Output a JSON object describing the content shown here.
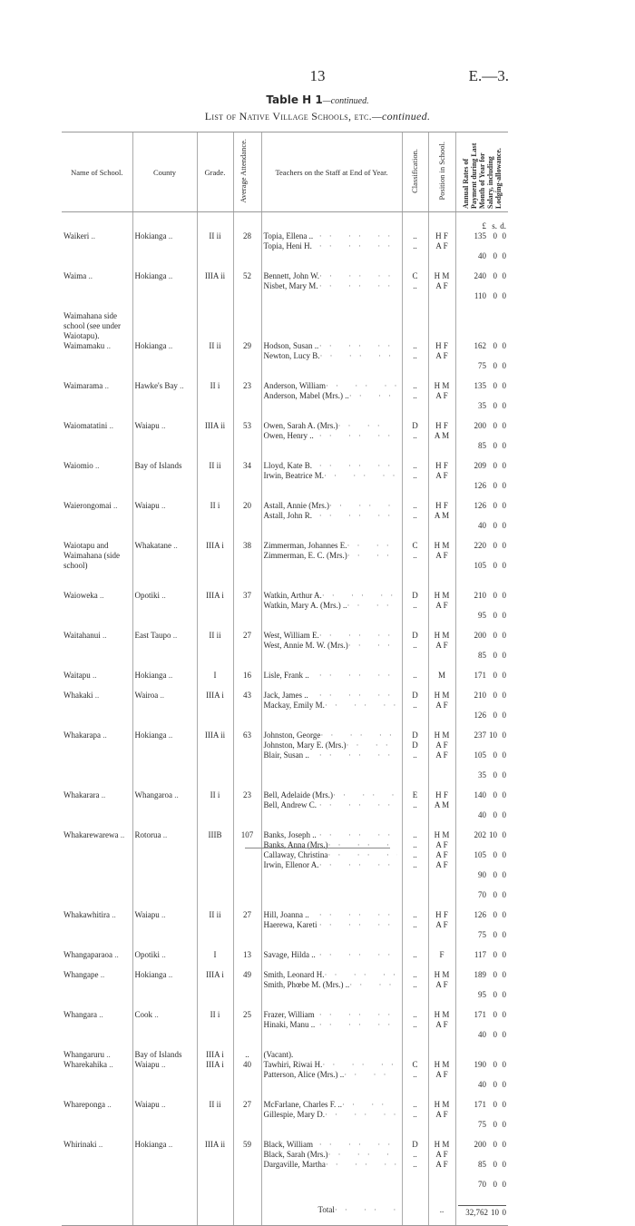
{
  "page": {
    "number": "13",
    "reference": "E.—3."
  },
  "title": {
    "main": "Table H 1",
    "cont": "—continued.",
    "subtitle": "List of Native Village Schools, etc.",
    "subtitle_cont": "—continued."
  },
  "columns": {
    "name": "Name of School.",
    "county": "County",
    "grade": "Grade.",
    "attendance": "Average Attendance.",
    "teachers": "Teachers on the Staff at End of Year.",
    "classification": "Classification.",
    "position": "Position in School.",
    "rates": "Annual Rates of Payment during Last Month of Year for Salary, including Lodging-allowance."
  },
  "currency": {
    "pounds": "£",
    "shillings": "s.",
    "pence": "d."
  },
  "schools": [
    {
      "name": "Waikeri",
      "county": "Hokianga",
      "grade": "II ii",
      "attendance": "28",
      "teachers": [
        [
          "Topia, Ellena ..",
          "..",
          "H F",
          "135",
          "0",
          "0"
        ],
        [
          "Topia, Heni H.",
          "..",
          "A F",
          "40",
          "0",
          "0"
        ]
      ]
    },
    {
      "name": "Waima",
      "county": "Hokianga",
      "grade": "IIIA ii",
      "attendance": "52",
      "teachers": [
        [
          "Bennett, John W.",
          "C",
          "H M",
          "240",
          "0",
          "0"
        ],
        [
          "Nisbet, Mary M.",
          "..",
          "A F",
          "110",
          "0",
          "0"
        ]
      ]
    },
    {
      "name": "Waimahana side school (see under Waiotapu).",
      "county": "",
      "grade": "",
      "attendance": "",
      "teachers": [
        [
          "",
          "",
          "",
          "",
          "",
          ""
        ],
        [
          "",
          "",
          "",
          "",
          "",
          ""
        ],
        [
          "",
          "",
          "",
          "",
          "",
          ""
        ]
      ]
    },
    {
      "name": "Waimamaku",
      "county": "Hokianga",
      "grade": "II ii",
      "attendance": "29",
      "teachers": [
        [
          "Hodson, Susan ..",
          "..",
          "H F",
          "162",
          "0",
          "0"
        ],
        [
          "Newton, Lucy B.",
          "..",
          "A F",
          "75",
          "0",
          "0"
        ]
      ]
    },
    {
      "name": "Waimarama",
      "county": "Hawke's Bay",
      "grade": "II i",
      "attendance": "23",
      "teachers": [
        [
          "Anderson, William",
          "..",
          "H M",
          "135",
          "0",
          "0"
        ],
        [
          "Anderson, Mabel (Mrs.) ..",
          "..",
          "A F",
          "35",
          "0",
          "0"
        ]
      ]
    },
    {
      "name": "Waiomatatini",
      "county": "Waiapu",
      "grade": "IIIA ii",
      "attendance": "53",
      "teachers": [
        [
          "Owen, Sarah A. (Mrs.)",
          "D",
          "H F",
          "200",
          "0",
          "0"
        ],
        [
          "Owen, Henry ..",
          "..",
          "A M",
          "85",
          "0",
          "0"
        ]
      ]
    },
    {
      "name": "Waiomio",
      "county": "Bay of Islands",
      "grade": "II ii",
      "attendance": "34",
      "teachers": [
        [
          "Lloyd, Kate B.",
          "..",
          "H F",
          "209",
          "0",
          "0"
        ],
        [
          "Irwin, Beatrice M.",
          "..",
          "A F",
          "126",
          "0",
          "0"
        ]
      ]
    },
    {
      "name": "Waierongomai",
      "county": "Waiapu",
      "grade": "II i",
      "attendance": "20",
      "teachers": [
        [
          "Astall, Annie (Mrs.)",
          "..",
          "H F",
          "126",
          "0",
          "0"
        ],
        [
          "Astall, John R.",
          "..",
          "A M",
          "40",
          "0",
          "0"
        ]
      ]
    },
    {
      "name": "Waiotapu and Waimahana (side school)",
      "county": "Whakatane",
      "grade": "IIIA i",
      "attendance": "38",
      "teachers": [
        [
          "Zimmerman, Johannes E.",
          "C",
          "H M",
          "220",
          "0",
          "0"
        ],
        [
          "Zimmerman, E. C. (Mrs.)",
          "..",
          "A F",
          "105",
          "0",
          "0"
        ],
        [
          "",
          "",
          "",
          "",
          "",
          ""
        ]
      ]
    },
    {
      "name": "Waioweka",
      "county": "Opotiki",
      "grade": "IIIA i",
      "attendance": "37",
      "teachers": [
        [
          "Watkin, Arthur A.",
          "D",
          "H M",
          "210",
          "0",
          "0"
        ],
        [
          "Watkin, Mary A. (Mrs.) ..",
          "..",
          "A F",
          "95",
          "0",
          "0"
        ]
      ]
    },
    {
      "name": "Waitahanui",
      "county": "East Taupo",
      "grade": "II ii",
      "attendance": "27",
      "teachers": [
        [
          "West, William E.",
          "D",
          "H M",
          "200",
          "0",
          "0"
        ],
        [
          "West, Annie M. W. (Mrs.)",
          "..",
          "A F",
          "85",
          "0",
          "0"
        ]
      ]
    },
    {
      "name": "Waitapu",
      "county": "Hokianga",
      "grade": "I",
      "attendance": "16",
      "teachers": [
        [
          "Lisle, Frank ..",
          "..",
          "M",
          "171",
          "0",
          "0"
        ]
      ]
    },
    {
      "name": "Whakaki",
      "county": "Wairoa",
      "grade": "IIIA i",
      "attendance": "43",
      "teachers": [
        [
          "Jack, James ..",
          "D",
          "H M",
          "210",
          "0",
          "0"
        ],
        [
          "Mackay, Emily M.",
          "..",
          "A F",
          "126",
          "0",
          "0"
        ]
      ]
    },
    {
      "name": "Whakarapa",
      "county": "Hokianga",
      "grade": "IIIA ii",
      "attendance": "63",
      "teachers": [
        [
          "Johnston, George",
          "D",
          "H M",
          "237",
          "10",
          "0"
        ],
        [
          "Johnston, Mary E. (Mrs.)",
          "D",
          "A F",
          "105",
          "0",
          "0"
        ],
        [
          "Blair, Susan ..",
          "..",
          "A F",
          "35",
          "0",
          "0"
        ]
      ]
    },
    {
      "name": "Whakarara",
      "county": "Whangaroa",
      "grade": "II i",
      "attendance": "23",
      "teachers": [
        [
          "Bell, Adelaide (Mrs.)",
          "E",
          "H F",
          "140",
          "0",
          "0"
        ],
        [
          "Bell, Andrew C.",
          "..",
          "A M",
          "40",
          "0",
          "0"
        ]
      ]
    },
    {
      "name": "Whakarewarewa",
      "county": "Rotorua",
      "grade": "IIIB",
      "attendance": "107",
      "teachers": [
        [
          "Banks, Joseph ..",
          "..",
          "H M",
          "202",
          "10",
          "0"
        ],
        [
          "Banks, Anna (Mrs.)",
          "..",
          "A F",
          "105",
          "0",
          "0"
        ],
        [
          "Callaway, Christina",
          "..",
          "A F",
          "90",
          "0",
          "0"
        ],
        [
          "Irwin, Ellenor A.",
          "..",
          "A F",
          "70",
          "0",
          "0"
        ]
      ]
    },
    {
      "name": "Whakawhitira",
      "county": "Waiapu",
      "grade": "II ii",
      "attendance": "27",
      "teachers": [
        [
          "Hill, Joanna ..",
          "..",
          "H F",
          "126",
          "0",
          "0"
        ],
        [
          "Haerewa, Kareti",
          "..",
          "A F",
          "75",
          "0",
          "0"
        ]
      ]
    },
    {
      "name": "Whangaparaoa",
      "county": "Opotiki",
      "grade": "I",
      "attendance": "13",
      "teachers": [
        [
          "Savage, Hilda ..",
          "..",
          "F",
          "117",
          "0",
          "0"
        ]
      ]
    },
    {
      "name": "Whangape",
      "county": "Hokianga",
      "grade": "IIIA i",
      "attendance": "49",
      "teachers": [
        [
          "Smith, Leonard H.",
          "..",
          "H M",
          "189",
          "0",
          "0"
        ],
        [
          "Smith, Phœbe M. (Mrs.) ..",
          "..",
          "A F",
          "95",
          "0",
          "0"
        ]
      ]
    },
    {
      "name": "Whangara",
      "county": "Cook",
      "grade": "II i",
      "attendance": "25",
      "teachers": [
        [
          "Frazer, William",
          "..",
          "H M",
          "171",
          "0",
          "0"
        ],
        [
          "Hinaki, Manu ..",
          "..",
          "A F",
          "40",
          "0",
          "0"
        ]
      ]
    },
    {
      "name": "Whangaruru",
      "county": "Bay of Islands",
      "grade": "IIIA i",
      "attendance": "..",
      "teachers": [
        [
          "(Vacant).",
          "",
          "",
          "",
          "",
          ""
        ]
      ]
    },
    {
      "name": "Wharekahika",
      "county": "Waiapu",
      "grade": "IIIA i",
      "attendance": "40",
      "teachers": [
        [
          "Tawhiri, Riwai H.",
          "C",
          "H M",
          "190",
          "0",
          "0"
        ],
        [
          "Patterson, Alice (Mrs.) ..",
          "..",
          "A F",
          "40",
          "0",
          "0"
        ]
      ]
    },
    {
      "name": "Whareponga",
      "county": "Waiapu",
      "grade": "II ii",
      "attendance": "27",
      "teachers": [
        [
          "McFarlane, Charles F. ..",
          "..",
          "H M",
          "171",
          "0",
          "0"
        ],
        [
          "Gillespie, Mary D.",
          "..",
          "A F",
          "75",
          "0",
          "0"
        ]
      ]
    },
    {
      "name": "Whirinaki",
      "county": "Hokianga",
      "grade": "IIIA ii",
      "attendance": "59",
      "teachers": [
        [
          "Black, William",
          "D",
          "H M",
          "200",
          "0",
          "0"
        ],
        [
          "Black, Sarah (Mrs.)",
          "..",
          "A F",
          "85",
          "0",
          "0"
        ],
        [
          "Dargaville, Martha",
          "..",
          "A F",
          "70",
          "0",
          "0"
        ]
      ]
    }
  ],
  "total": {
    "label": "Total",
    "position": "..",
    "pounds": "32,762",
    "shillings": "10",
    "pence": "0"
  }
}
